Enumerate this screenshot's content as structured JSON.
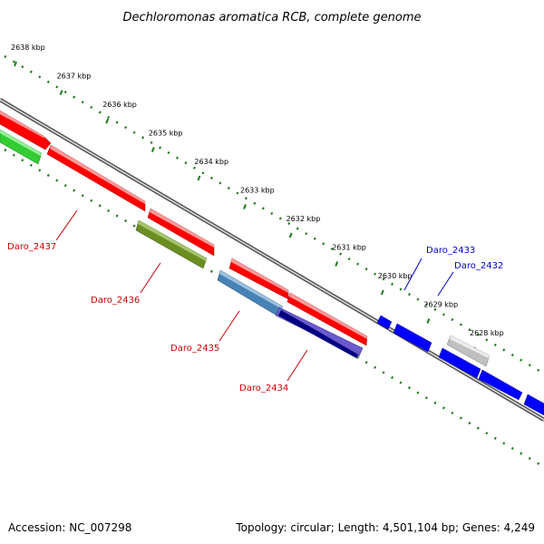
{
  "title": "Dechloromonas aromatica RCB, complete genome",
  "ticks": [
    "2638 kbp",
    "2637 kbp",
    "2636 kbp",
    "2635 kbp",
    "2634 kbp",
    "2633 kbp",
    "2632 kbp",
    "2631 kbp",
    "2630 kbp",
    "2629 kbp",
    "2628 kbp"
  ],
  "genes_left": [
    {
      "label": "Daro_2437",
      "color": "#cc0000"
    },
    {
      "label": "Daro_2436",
      "color": "#cc0000"
    },
    {
      "label": "Daro_2435",
      "color": "#cc0000"
    },
    {
      "label": "Daro_2434",
      "color": "#cc0000"
    }
  ],
  "genes_right": [
    {
      "label": "Daro_2433",
      "color": "#0000cc"
    },
    {
      "label": "Daro_2432",
      "color": "#0000cc"
    }
  ],
  "footer": {
    "accession": "Accession: NC_007298",
    "topology": "Topology: circular; Length: 4,501,104 bp; Genes: 4,249"
  },
  "colors": {
    "forward_gene": "#ff0000",
    "reverse_gene": "#0000ff",
    "green_gene": "#33cc33",
    "olive_gene": "#6b8e23",
    "steelblue_gene": "#4682b4",
    "slateblue_gene": "#6a5acd",
    "navy_gene": "#000080",
    "grey_gene": "#c0c0c0",
    "tick_color": "#1a7a1a",
    "backbone": "#888888"
  }
}
